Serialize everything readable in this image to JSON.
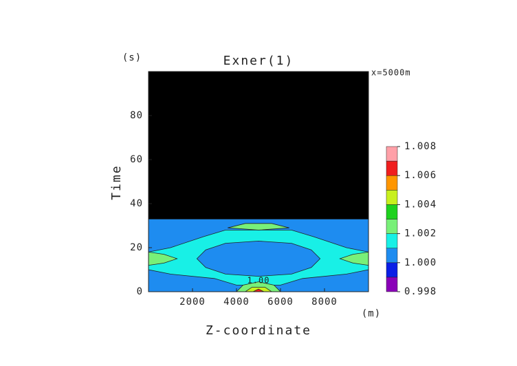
{
  "chart_data": {
    "type": "contour",
    "title": "Exner(1)",
    "annotation": "x=5000m",
    "x_label": "Z-coordinate",
    "x_unit": "(m)",
    "y_label": "Time",
    "y_unit": "(s)",
    "contour_label": {
      "text": "1.00",
      "x": 5000,
      "y": 5
    },
    "xlim": [
      0,
      10000
    ],
    "xticks": [
      2000,
      4000,
      6000,
      8000
    ],
    "ylim": [
      0,
      100
    ],
    "yticks": [
      0,
      20,
      40,
      60,
      80
    ],
    "colorbar": {
      "levels": [
        0.998,
        0.999,
        1.0,
        1.001,
        1.002,
        1.003,
        1.004,
        1.005,
        1.006,
        1.007,
        1.008
      ],
      "colors": [
        "#8a00b8",
        "#0a1ee6",
        "#1e8cf0",
        "#18f0e6",
        "#78f078",
        "#1ed21e",
        "#c8f01e",
        "#ff9600",
        "#f01e1e",
        "#ffa0a8"
      ],
      "ticks": [
        0.998,
        {
          "value": 1.0,
          "label": "1.000"
        },
        1.002,
        1.004,
        1.006,
        1.008
      ]
    },
    "mask": {
      "color": "#000000",
      "points": [
        [
          0,
          33
        ],
        [
          10000,
          33
        ],
        [
          10000,
          100
        ],
        [
          0,
          100
        ]
      ]
    },
    "regions": [
      {
        "value": 1.0005,
        "points": [
          [
            0,
            0
          ],
          [
            10000,
            0
          ],
          [
            10000,
            33
          ],
          [
            0,
            33
          ]
        ]
      },
      {
        "value": 1.0015,
        "points": [
          [
            0,
            18
          ],
          [
            1000,
            20
          ],
          [
            2500,
            25
          ],
          [
            3500,
            28
          ],
          [
            6500,
            28
          ],
          [
            7500,
            25
          ],
          [
            9000,
            20
          ],
          [
            10000,
            18
          ],
          [
            10000,
            10
          ],
          [
            9000,
            8
          ],
          [
            7000,
            6
          ],
          [
            6000,
            3
          ],
          [
            4000,
            3
          ],
          [
            3000,
            6
          ],
          [
            1000,
            8
          ],
          [
            0,
            10
          ]
        ]
      },
      {
        "value": 1.0005,
        "points": [
          [
            2200,
            15
          ],
          [
            2600,
            19
          ],
          [
            3500,
            22
          ],
          [
            5000,
            23
          ],
          [
            6500,
            22
          ],
          [
            7400,
            19
          ],
          [
            7800,
            15
          ],
          [
            7400,
            11
          ],
          [
            6500,
            8
          ],
          [
            5000,
            7
          ],
          [
            3500,
            8
          ],
          [
            2600,
            11
          ]
        ]
      },
      {
        "value": 1.0025,
        "points": [
          [
            0,
            12
          ],
          [
            700,
            13
          ],
          [
            1300,
            15
          ],
          [
            700,
            17
          ],
          [
            0,
            18
          ]
        ]
      },
      {
        "value": 1.0025,
        "points": [
          [
            10000,
            12
          ],
          [
            9300,
            13
          ],
          [
            8700,
            15
          ],
          [
            9300,
            17
          ],
          [
            10000,
            18
          ]
        ]
      },
      {
        "value": 1.0025,
        "points": [
          [
            3600,
            29
          ],
          [
            4400,
            31
          ],
          [
            5600,
            31
          ],
          [
            6400,
            29
          ],
          [
            5000,
            28
          ]
        ]
      },
      {
        "value": 1.0025,
        "points": [
          [
            4000,
            0
          ],
          [
            4300,
            3
          ],
          [
            5000,
            4.5
          ],
          [
            5700,
            3
          ],
          [
            6000,
            0
          ]
        ]
      },
      {
        "value": 1.0045,
        "points": [
          [
            4400,
            0
          ],
          [
            4700,
            2
          ],
          [
            5300,
            2
          ],
          [
            5600,
            0
          ]
        ]
      },
      {
        "value": 1.0065,
        "points": [
          [
            4750,
            0
          ],
          [
            5000,
            1.2
          ],
          [
            5250,
            0
          ]
        ]
      }
    ]
  }
}
